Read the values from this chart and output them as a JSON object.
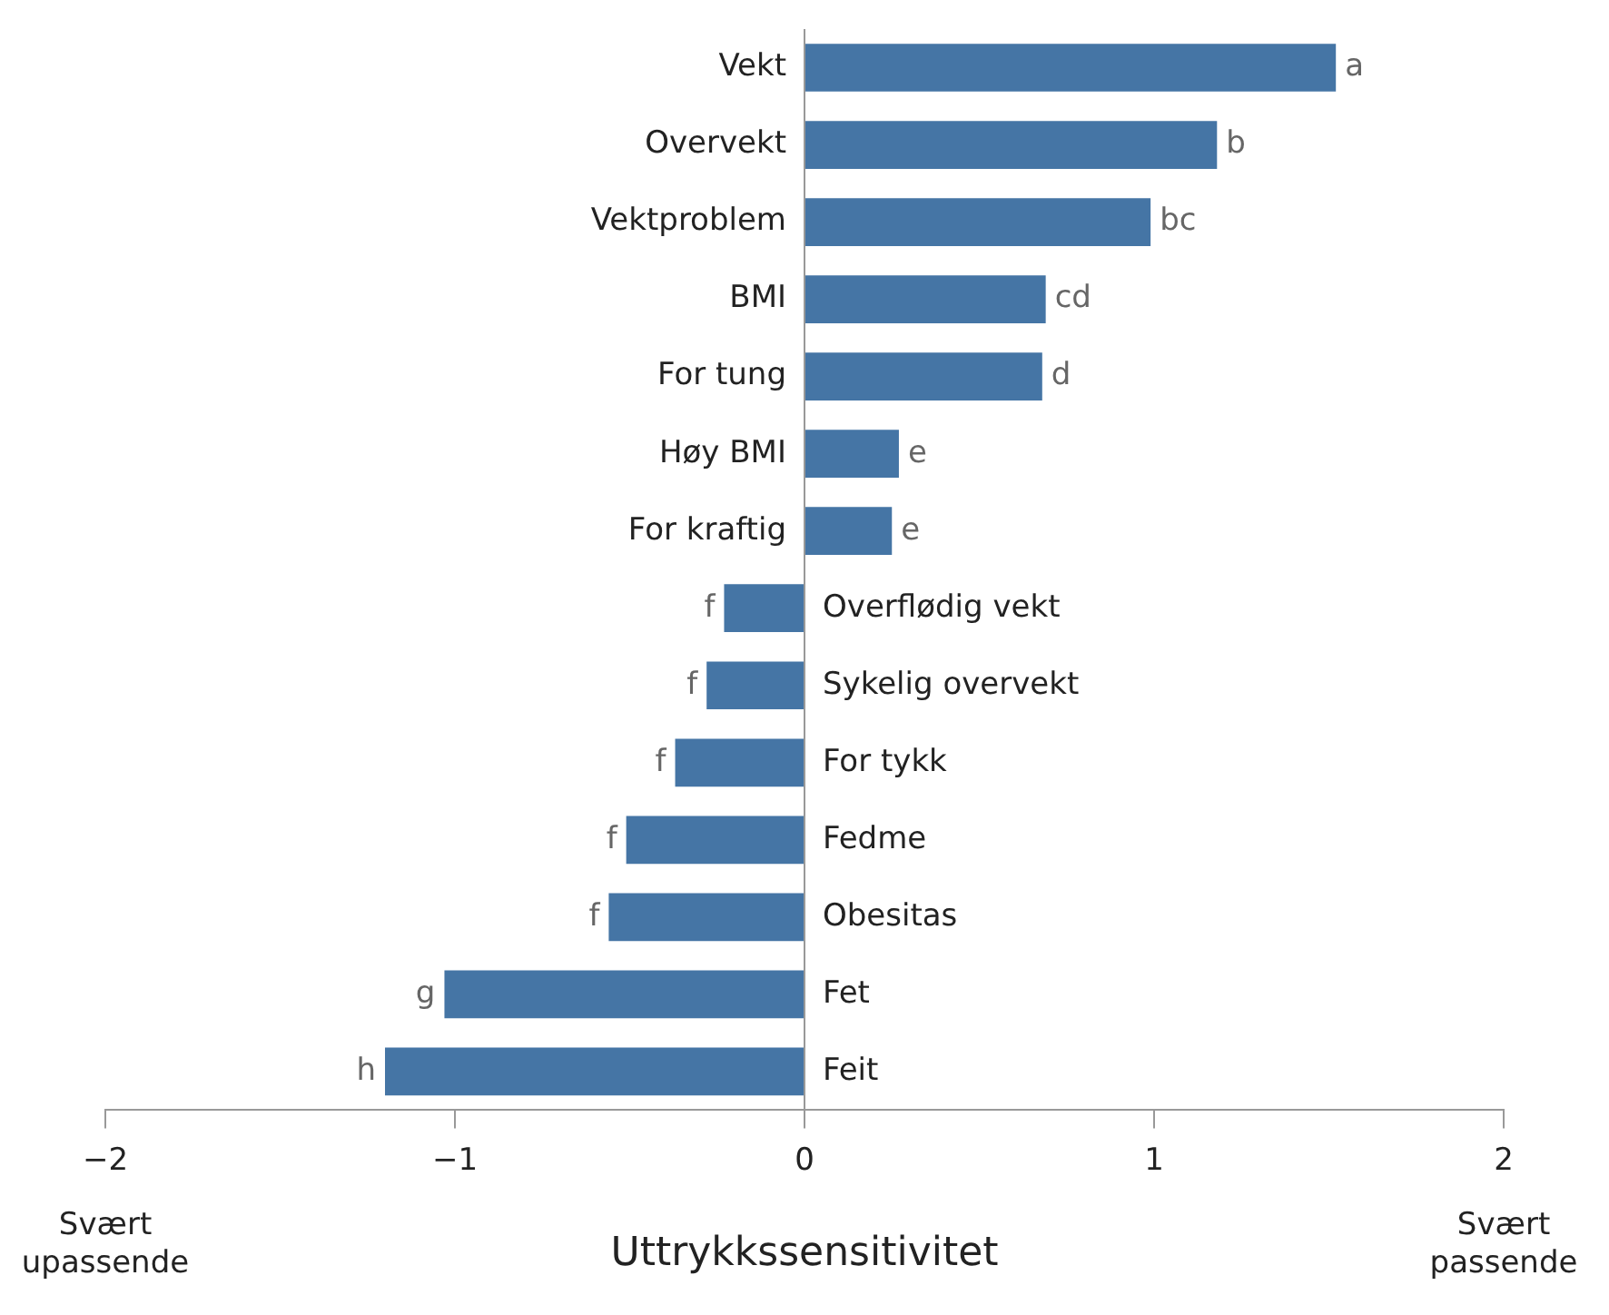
{
  "chart_data": {
    "type": "bar",
    "orientation": "horizontal",
    "xlabel": "Uttrykkssensitivitet",
    "categories": [
      "Vekt",
      "Overvekt",
      "Vektproblem",
      "BMI",
      "For tung",
      "Høy BMI",
      "For kraftig",
      "Overflødig vekt",
      "Sykelig overvekt",
      "For tykk",
      "Fedme",
      "Obesitas",
      "Fet",
      "Feit"
    ],
    "values": [
      1.52,
      1.18,
      0.99,
      0.69,
      0.68,
      0.27,
      0.25,
      -0.23,
      -0.28,
      -0.37,
      -0.51,
      -0.56,
      -1.03,
      -1.2
    ],
    "value_labels": [
      "a",
      "b",
      "bc",
      "cd",
      "d",
      "e",
      "e",
      "f",
      "f",
      "f",
      "f",
      "f",
      "g",
      "h"
    ],
    "color": "#4575a5",
    "xlim": [
      -2,
      2
    ],
    "xticks": [
      {
        "value": -2,
        "label": "−2"
      },
      {
        "value": -1,
        "label": "−1"
      },
      0,
      1,
      2
    ],
    "grid": false,
    "legend": false,
    "annotations": [
      "Svært upassende",
      "Svært passende"
    ]
  }
}
